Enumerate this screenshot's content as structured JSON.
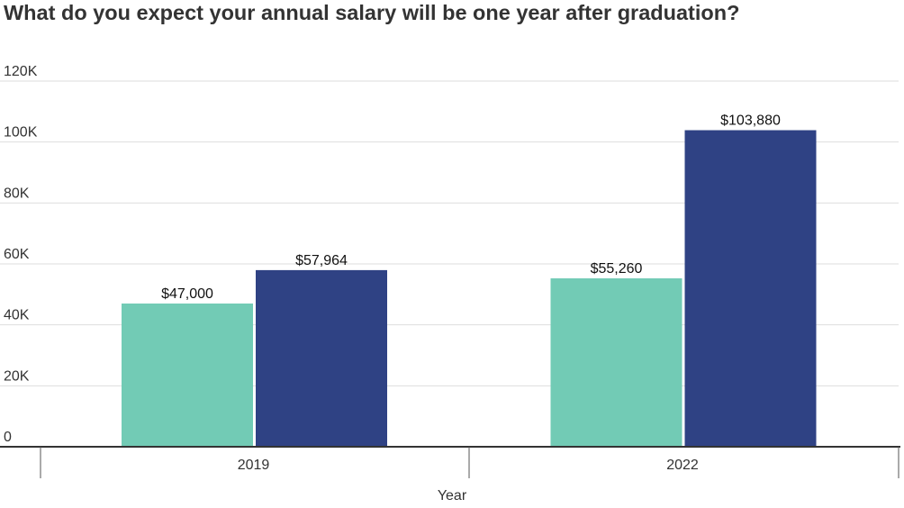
{
  "title": "What do you expect your annual salary will be one year after graduation?",
  "chart_data": {
    "type": "bar",
    "title": "What do you expect your annual salary will be one year after graduation?",
    "xlabel": "Year",
    "ylabel": "",
    "categories": [
      "2019",
      "2022"
    ],
    "series": [
      {
        "values": [
          47000,
          55260
        ],
        "labels": [
          "$47,000",
          "$55,260"
        ],
        "color": "#72cbb5"
      },
      {
        "values": [
          57964,
          103880
        ],
        "labels": [
          "$57,964",
          "$103,880"
        ],
        "color": "#2f4284"
      }
    ],
    "ylim": [
      0,
      120000
    ],
    "yticks": [
      0,
      20000,
      40000,
      60000,
      80000,
      100000,
      120000
    ],
    "ytick_labels": [
      "0",
      "20K",
      "40K",
      "60K",
      "80K",
      "100K",
      "120K"
    ],
    "grid": true,
    "legend": "none"
  }
}
